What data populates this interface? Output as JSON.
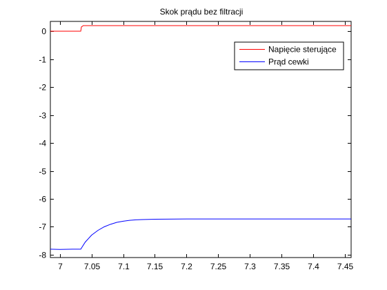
{
  "chart_data": {
    "type": "line",
    "title": "Skok prądu bez filtracji",
    "xlabel": "",
    "ylabel": "",
    "xlim": [
      6.985,
      7.46
    ],
    "ylim": [
      -8.1,
      0.35
    ],
    "x_ticks": [
      7,
      7.05,
      7.1,
      7.15,
      7.2,
      7.25,
      7.3,
      7.35,
      7.4,
      7.45
    ],
    "x_tick_labels": [
      "7",
      "7.05",
      "7.1",
      "7.15",
      "7.2",
      "7.25",
      "7.3",
      "7.35",
      "7.4",
      "7.45"
    ],
    "y_ticks": [
      0,
      -1,
      -2,
      -3,
      -4,
      -5,
      -6,
      -7,
      -8
    ],
    "y_tick_labels": [
      "0",
      "-1",
      "-2",
      "-3",
      "-4",
      "-5",
      "-6",
      "-7",
      "-8"
    ],
    "grid": false,
    "legend_position": "top-right",
    "series": [
      {
        "name": "Napięcie sterujące",
        "color": "#ff0000",
        "x": [
          6.985,
          7.033,
          7.034,
          7.037,
          7.46
        ],
        "y": [
          0,
          0,
          0.15,
          0.2,
          0.2
        ]
      },
      {
        "name": "Prąd cewki",
        "color": "#0000ff",
        "x": [
          6.985,
          7.0,
          7.02,
          7.033,
          7.04,
          7.05,
          7.06,
          7.07,
          7.08,
          7.09,
          7.1,
          7.11,
          7.12,
          7.13,
          7.15,
          7.2,
          7.25,
          7.3,
          7.35,
          7.4,
          7.46
        ],
        "y": [
          -7.8,
          -7.81,
          -7.8,
          -7.8,
          -7.55,
          -7.3,
          -7.13,
          -7.0,
          -6.91,
          -6.84,
          -6.8,
          -6.77,
          -6.75,
          -6.74,
          -6.73,
          -6.72,
          -6.72,
          -6.72,
          -6.72,
          -6.72,
          -6.72
        ]
      }
    ]
  }
}
